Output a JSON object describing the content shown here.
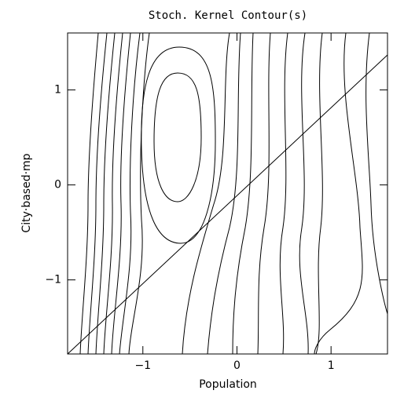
{
  "chart_data": {
    "type": "contour",
    "title": "Stoch. Kernel Contour(s)",
    "x_label": "Population",
    "y_label": "City·based·mp",
    "xlim": [
      -1.8,
      1.6
    ],
    "ylim": [
      -1.78,
      1.6
    ],
    "xticks": [
      {
        "value": -1,
        "label": "−1"
      },
      0,
      1
    ],
    "yticks": [
      {
        "value": -1,
        "label": "−1"
      },
      0,
      1
    ]
  }
}
